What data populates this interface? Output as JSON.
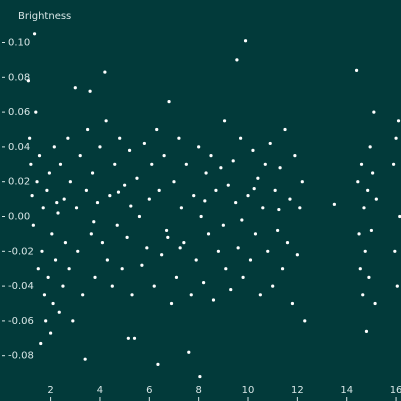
{
  "chart_data": {
    "type": "scatter",
    "y_label": "Brightness",
    "color": "#ffffff",
    "background": "#023a3a",
    "xlim": [
      1.1,
      16.2
    ],
    "ylim": [
      -0.1,
      0.11
    ],
    "xticks": [
      2,
      4,
      6,
      8,
      10,
      12,
      14,
      16
    ],
    "yticks": [
      {
        "value": 0.1,
        "label": "0.10"
      },
      0.08,
      0.06,
      0.04,
      0.02,
      {
        "value": 0,
        "label": "0.00"
      },
      -0.02,
      -0.04,
      -0.06,
      -0.08
    ],
    "x": [
      1.1,
      1.15,
      1.2,
      1.25,
      1.3,
      1.35,
      1.4,
      1.45,
      1.5,
      1.55,
      1.6,
      1.65,
      1.7,
      1.75,
      1.8,
      1.85,
      1.9,
      1.95,
      2.0,
      2.05,
      2.1,
      2.15,
      2.2,
      2.3,
      2.35,
      2.4,
      2.5,
      2.55,
      2.6,
      2.7,
      2.75,
      2.8,
      2.9,
      3.0,
      3.05,
      3.1,
      3.2,
      3.3,
      3.4,
      3.45,
      3.5,
      3.6,
      3.65,
      3.7,
      3.8,
      3.9,
      4.0,
      4.1,
      4.2,
      4.25,
      4.3,
      4.4,
      4.5,
      4.6,
      4.7,
      4.8,
      4.9,
      5.0,
      5.1,
      5.15,
      5.2,
      5.3,
      5.4,
      5.5,
      5.6,
      5.7,
      5.8,
      5.9,
      6.0,
      6.1,
      6.2,
      6.3,
      6.35,
      6.4,
      6.5,
      6.6,
      6.7,
      6.8,
      6.9,
      7.0,
      7.1,
      7.2,
      7.3,
      7.4,
      7.5,
      7.6,
      7.7,
      7.8,
      7.9,
      8.0,
      8.05,
      8.1,
      8.2,
      8.3,
      8.4,
      8.5,
      8.6,
      8.7,
      8.8,
      8.9,
      9.0,
      9.05,
      9.1,
      9.2,
      9.3,
      9.4,
      9.5,
      9.55,
      9.6,
      9.7,
      9.8,
      9.9,
      10.0,
      10.1,
      10.2,
      10.3,
      10.4,
      10.5,
      10.6,
      10.7,
      10.8,
      10.9,
      11.0,
      11.1,
      11.2,
      11.3,
      11.4,
      11.5,
      11.6,
      11.7,
      11.8,
      11.9,
      12.0,
      12.1,
      12.2,
      12.3,
      13.5,
      14.4,
      14.45,
      14.5,
      14.55,
      14.6,
      14.65,
      14.7,
      14.75,
      14.8,
      14.85,
      14.9,
      14.95,
      15.0,
      15.05,
      15.1,
      15.15,
      15.2,
      15.9,
      15.95,
      16.0,
      16.05,
      16.1,
      16.15,
      2.25,
      3.75,
      5.25,
      6.75,
      8.25,
      9.75,
      11.25,
      4.75,
      7.25,
      10.25
    ],
    "y": [
      0.078,
      0.045,
      0.03,
      0.012,
      -0.005,
      0.105,
      0.06,
      0.02,
      -0.03,
      0.035,
      -0.073,
      -0.02,
      0.005,
      -0.045,
      -0.06,
      0.015,
      -0.035,
      0.025,
      -0.067,
      -0.01,
      -0.05,
      0.04,
      -0.025,
      0.002,
      -0.055,
      0.03,
      -0.04,
      0.01,
      -0.015,
      0.045,
      -0.03,
      0.02,
      -0.06,
      0.074,
      0.005,
      -0.02,
      0.035,
      -0.045,
      -0.082,
      0.015,
      0.05,
      0.072,
      -0.01,
      0.025,
      -0.035,
      0.008,
      0.04,
      -0.015,
      0.083,
      0.055,
      -0.025,
      0.012,
      -0.04,
      0.03,
      -0.005,
      0.045,
      -0.03,
      0.018,
      -0.012,
      -0.07,
      0.038,
      -0.045,
      -0.07,
      0.022,
      0.0,
      -0.028,
      0.042,
      -0.018,
      0.01,
      0.03,
      -0.04,
      0.05,
      -0.085,
      0.015,
      -0.022,
      0.035,
      -0.008,
      0.066,
      -0.05,
      0.02,
      -0.035,
      0.045,
      0.005,
      -0.015,
      0.03,
      -0.078,
      -0.045,
      0.012,
      -0.025,
      0.04,
      -0.092,
      0.0,
      -0.038,
      0.025,
      -0.01,
      0.035,
      -0.048,
      0.015,
      -0.02,
      0.028,
      -0.005,
      0.055,
      -0.03,
      0.018,
      -0.042,
      0.032,
      0.008,
      0.09,
      -0.018,
      0.045,
      -0.035,
      0.101,
      0.012,
      -0.025,
      0.038,
      -0.01,
      0.022,
      -0.045,
      0.005,
      0.03,
      -0.02,
      0.042,
      -0.04,
      0.015,
      -0.008,
      0.028,
      -0.03,
      0.05,
      -0.015,
      0.01,
      -0.05,
      0.035,
      -0.022,
      0.005,
      0.02,
      -0.06,
      0.007,
      0.084,
      0.02,
      -0.01,
      -0.03,
      0.03,
      -0.045,
      0.005,
      -0.02,
      -0.066,
      0.015,
      -0.035,
      0.04,
      -0.008,
      0.025,
      0.06,
      -0.05,
      0.01,
      0.03,
      -0.02,
      0.045,
      -0.04,
      0.055,
      0.0,
      0.008,
      -0.003,
      0.006,
      -0.012,
      0.009,
      -0.002,
      0.004,
      0.014,
      -0.018,
      0.016
    ]
  }
}
